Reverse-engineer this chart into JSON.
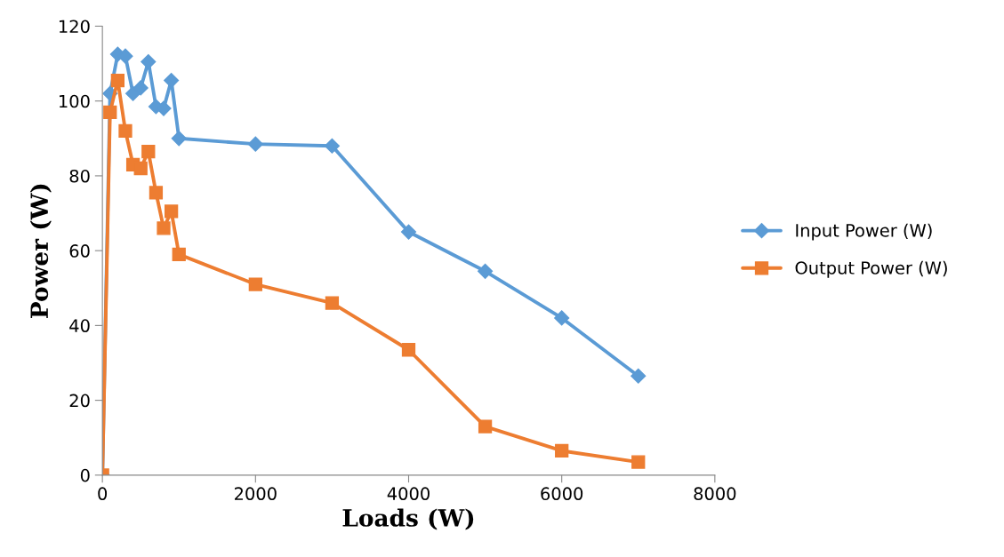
{
  "chart_data": {
    "type": "line",
    "xlabel": "Loads (W)",
    "ylabel": "Power (W)",
    "x": [
      0,
      100,
      200,
      300,
      400,
      500,
      600,
      700,
      800,
      900,
      1000,
      2000,
      3000,
      4000,
      5000,
      6000,
      7000
    ],
    "series": [
      {
        "name": "Input Power (W)",
        "color": "#5b9bd5",
        "marker": "diamond",
        "values": [
          0,
          102,
          112.5,
          112,
          102,
          103.5,
          110.5,
          98.5,
          98,
          105.5,
          90,
          88.5,
          88,
          65,
          54.5,
          42,
          26.5
        ]
      },
      {
        "name": "Output Power (W)",
        "color": "#ed7d31",
        "marker": "square",
        "values": [
          0,
          97,
          105.5,
          92,
          83,
          82,
          86.5,
          75.5,
          66,
          70.5,
          59,
          51,
          46,
          33.5,
          13,
          6.5,
          3.5
        ]
      }
    ],
    "xlim": [
      0,
      8000
    ],
    "xticks": [
      0,
      2000,
      4000,
      6000,
      8000
    ],
    "ylim": [
      0,
      120
    ],
    "yticks": [
      0,
      20,
      40,
      60,
      80,
      100,
      120
    ],
    "grid": false,
    "legend": "right",
    "line_style": "solid"
  }
}
